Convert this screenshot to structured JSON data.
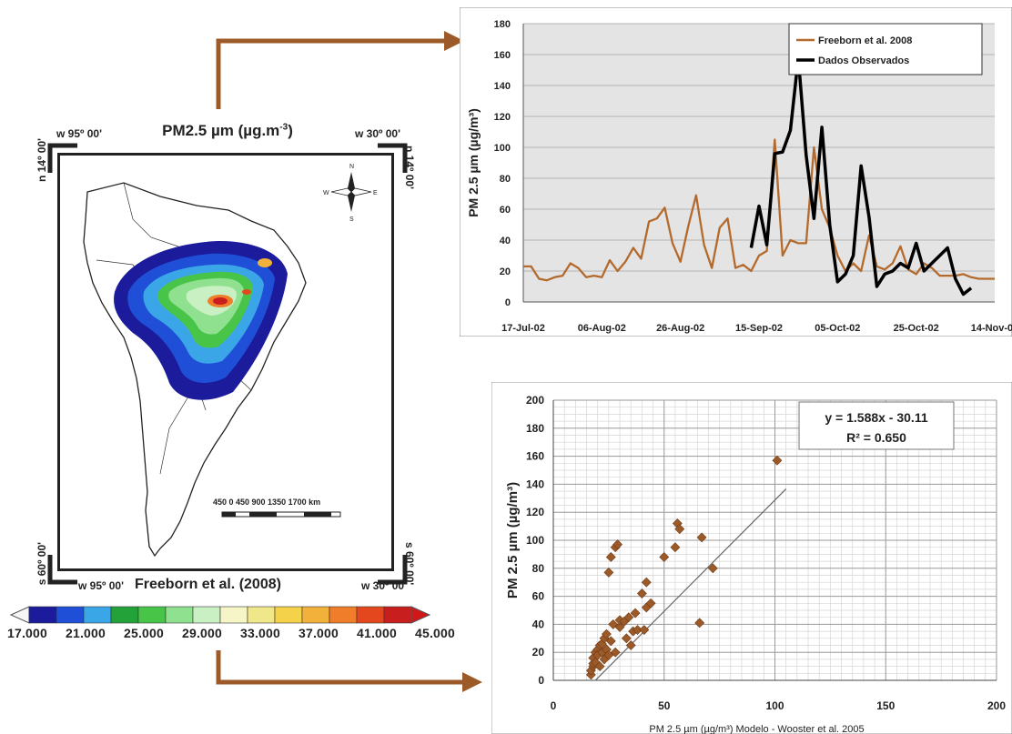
{
  "map": {
    "title": "PM2.5 µm (µg.m",
    "title_sup": "-3",
    "title_end": ")",
    "corner_top_left": "w 95º 00'",
    "corner_top_right": "w 30º 00'",
    "corner_bottom_left": "w 95º 00'",
    "corner_bottom_right": "w 30º 00'",
    "lat_left_top": "n 14º 00'",
    "lat_right_top": "n 14º 00'",
    "lat_left_bottom": "s 60º 00'",
    "lat_right_bottom": "s 60º 00'",
    "source": "Freeborn et al. (2008)",
    "scale_label": "450   0   450  900  1350  1700 km",
    "compass": {
      "n": "N",
      "s": "S",
      "e": "E",
      "w": "W"
    },
    "colorbar": {
      "labels": [
        "17.000",
        "21.000",
        "25.000",
        "29.000",
        "33.000",
        "37.000",
        "41.000",
        "45.000"
      ],
      "colors": [
        "#1b1b9b",
        "#1f4fd6",
        "#3aa6e8",
        "#23a23a",
        "#48c548",
        "#8fe08f",
        "#c9f0c2",
        "#f5f5c8",
        "#f0e68a",
        "#f4d34a",
        "#f2b13a",
        "#ef7d2a",
        "#e4461e",
        "#c81e1e"
      ]
    },
    "colors": {
      "frame": "#222222"
    }
  },
  "chart_data": [
    {
      "type": "line",
      "title": "",
      "xlabel": "",
      "ylabel": "PM 2.5 µm (µg/m³)",
      "ylim": [
        0,
        180
      ],
      "yticks": [
        "0",
        "20",
        "40",
        "60",
        "80",
        "100",
        "120",
        "140",
        "160",
        "180"
      ],
      "xticks": [
        "17-Jul-02",
        "06-Aug-02",
        "26-Aug-02",
        "15-Sep-02",
        "05-Oct-02",
        "25-Oct-02",
        "14-Nov-02"
      ],
      "xlim": [
        "2002-07-17",
        "2002-11-14"
      ],
      "grid": true,
      "legend_position": "top-right",
      "series": [
        {
          "name": "Freeborn et al. 2008",
          "color": "#b36a2c",
          "points": [
            [
              "2002-07-17",
              23
            ],
            [
              "2002-07-19",
              23
            ],
            [
              "2002-07-21",
              15
            ],
            [
              "2002-07-23",
              14
            ],
            [
              "2002-07-25",
              16
            ],
            [
              "2002-07-27",
              17
            ],
            [
              "2002-07-29",
              25
            ],
            [
              "2002-07-31",
              22
            ],
            [
              "2002-08-02",
              16
            ],
            [
              "2002-08-04",
              17
            ],
            [
              "2002-08-06",
              16
            ],
            [
              "2002-08-08",
              27
            ],
            [
              "2002-08-10",
              20
            ],
            [
              "2002-08-12",
              26
            ],
            [
              "2002-08-14",
              35
            ],
            [
              "2002-08-16",
              28
            ],
            [
              "2002-08-18",
              52
            ],
            [
              "2002-08-20",
              54
            ],
            [
              "2002-08-22",
              61
            ],
            [
              "2002-08-24",
              38
            ],
            [
              "2002-08-26",
              26
            ],
            [
              "2002-08-28",
              49
            ],
            [
              "2002-08-30",
              69
            ],
            [
              "2002-09-01",
              37
            ],
            [
              "2002-09-03",
              22
            ],
            [
              "2002-09-05",
              48
            ],
            [
              "2002-09-07",
              54
            ],
            [
              "2002-09-09",
              22
            ],
            [
              "2002-09-11",
              24
            ],
            [
              "2002-09-13",
              20
            ],
            [
              "2002-09-15",
              30
            ],
            [
              "2002-09-17",
              33
            ],
            [
              "2002-09-19",
              105
            ],
            [
              "2002-09-21",
              30
            ],
            [
              "2002-09-23",
              40
            ],
            [
              "2002-09-25",
              38
            ],
            [
              "2002-09-27",
              38
            ],
            [
              "2002-09-29",
              100
            ],
            [
              "2002-10-01",
              60
            ],
            [
              "2002-10-03",
              48
            ],
            [
              "2002-10-05",
              30
            ],
            [
              "2002-10-07",
              20
            ],
            [
              "2002-10-09",
              25
            ],
            [
              "2002-10-11",
              20
            ],
            [
              "2002-10-13",
              43
            ],
            [
              "2002-10-15",
              23
            ],
            [
              "2002-10-17",
              21
            ],
            [
              "2002-10-19",
              25
            ],
            [
              "2002-10-21",
              36
            ],
            [
              "2002-10-23",
              21
            ],
            [
              "2002-10-25",
              18
            ],
            [
              "2002-10-27",
              25
            ],
            [
              "2002-10-29",
              22
            ],
            [
              "2002-10-31",
              17
            ],
            [
              "2002-11-02",
              17
            ],
            [
              "2002-11-04",
              17
            ],
            [
              "2002-11-06",
              18
            ],
            [
              "2002-11-08",
              16
            ],
            [
              "2002-11-10",
              15
            ],
            [
              "2002-11-14",
              15
            ]
          ]
        },
        {
          "name": "Dados Observados",
          "color": "#000000",
          "points": [
            [
              "2002-09-13",
              35
            ],
            [
              "2002-09-15",
              62
            ],
            [
              "2002-09-17",
              37
            ],
            [
              "2002-09-19",
              96
            ],
            [
              "2002-09-21",
              97
            ],
            [
              "2002-09-23",
              111
            ],
            [
              "2002-09-25",
              158
            ],
            [
              "2002-09-27",
              95
            ],
            [
              "2002-09-29",
              54
            ],
            [
              "2002-10-01",
              113
            ],
            [
              "2002-10-03",
              50
            ],
            [
              "2002-10-05",
              13
            ],
            [
              "2002-10-07",
              18
            ],
            [
              "2002-10-09",
              30
            ],
            [
              "2002-10-11",
              88
            ],
            [
              "2002-10-13",
              55
            ],
            [
              "2002-10-15",
              10
            ],
            [
              "2002-10-17",
              18
            ],
            [
              "2002-10-19",
              20
            ],
            [
              "2002-10-21",
              25
            ],
            [
              "2002-10-23",
              22
            ],
            [
              "2002-10-25",
              38
            ],
            [
              "2002-10-27",
              20
            ],
            [
              "2002-10-29",
              25
            ],
            [
              "2002-10-31",
              30
            ],
            [
              "2002-11-02",
              35
            ],
            [
              "2002-11-04",
              15
            ],
            [
              "2002-11-06",
              5
            ],
            [
              "2002-11-08",
              9
            ]
          ]
        }
      ]
    },
    {
      "type": "scatter",
      "title": "",
      "xlabel": "PM 2.5 µm (µg/m³)  Modelo - Wooster et al. 2005",
      "ylabel": "PM 2.5 µm (µg/m³)",
      "xlim": [
        0,
        200
      ],
      "ylim": [
        0,
        200
      ],
      "xticks": [
        "0",
        "50",
        "100",
        "150",
        "200"
      ],
      "yticks": [
        "0",
        "20",
        "40",
        "60",
        "80",
        "100",
        "120",
        "140",
        "160",
        "180",
        "200"
      ],
      "grid": true,
      "annotation": [
        "y = 1.588x - 30.11",
        "R² = 0.650"
      ],
      "trendline": {
        "slope": 1.588,
        "intercept": -30.11,
        "x_range": [
          19,
          105
        ]
      },
      "marker_color": "#9c5a28",
      "points": [
        [
          17,
          4
        ],
        [
          17,
          7
        ],
        [
          18,
          10
        ],
        [
          18,
          12
        ],
        [
          18,
          16
        ],
        [
          19,
          20
        ],
        [
          19,
          13
        ],
        [
          20,
          22
        ],
        [
          20,
          18
        ],
        [
          21,
          25
        ],
        [
          21,
          10
        ],
        [
          22,
          26
        ],
        [
          22,
          20
        ],
        [
          23,
          30
        ],
        [
          23,
          15
        ],
        [
          24,
          33
        ],
        [
          24,
          22
        ],
        [
          25,
          18
        ],
        [
          25,
          77
        ],
        [
          26,
          28
        ],
        [
          26,
          88
        ],
        [
          27,
          40
        ],
        [
          28,
          20
        ],
        [
          28,
          95
        ],
        [
          29,
          97
        ],
        [
          30,
          38
        ],
        [
          30,
          43
        ],
        [
          32,
          42
        ],
        [
          33,
          30
        ],
        [
          34,
          45
        ],
        [
          35,
          25
        ],
        [
          36,
          35
        ],
        [
          37,
          48
        ],
        [
          38,
          36
        ],
        [
          40,
          62
        ],
        [
          41,
          36
        ],
        [
          42,
          70
        ],
        [
          42,
          52
        ],
        [
          44,
          55
        ],
        [
          50,
          88
        ],
        [
          55,
          95
        ],
        [
          56,
          112
        ],
        [
          57,
          108
        ],
        [
          66,
          41
        ],
        [
          67,
          102
        ],
        [
          72,
          80
        ],
        [
          101,
          157
        ]
      ]
    }
  ]
}
